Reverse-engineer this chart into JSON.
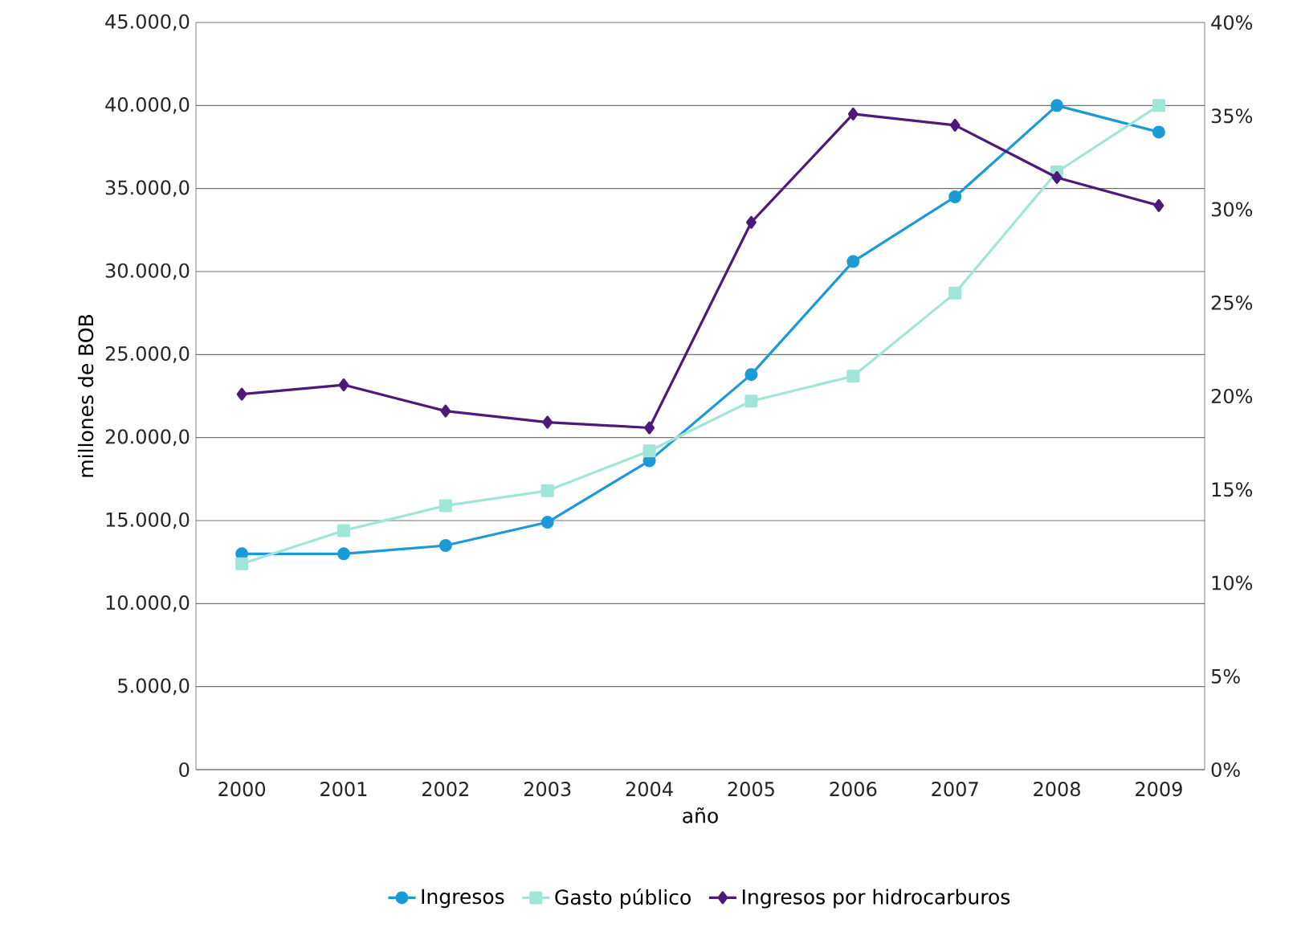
{
  "chart_data": {
    "type": "line",
    "xlabel": "año",
    "ylabel": "millones de BOB",
    "categories": [
      "2000",
      "2001",
      "2002",
      "2003",
      "2004",
      "2005",
      "2006",
      "2007",
      "2008",
      "2009"
    ],
    "series": [
      {
        "name": "Ingresos",
        "color": "#1a9ad6",
        "marker": "circle",
        "values": [
          13000,
          13000,
          13500,
          14900,
          18600,
          23800,
          30600,
          34500,
          40000,
          38400
        ]
      },
      {
        "name": "Gasto público",
        "color": "#a0e6d8",
        "marker": "square",
        "values": [
          12400,
          14400,
          15900,
          16800,
          19200,
          22200,
          23700,
          28700,
          36000,
          40000
        ]
      },
      {
        "name": "Ingresos por hidrocarburos",
        "color": "#4b1a7a",
        "marker": "diamond",
        "axis": "y2",
        "values": [
          20.1,
          20.6,
          19.2,
          18.6,
          18.3,
          29.3,
          35.1,
          34.5,
          31.7,
          30.2
        ]
      }
    ],
    "ylim": [
      0,
      45000
    ],
    "yticks": [
      0,
      {
        "value": 5000,
        "label": "5.000,0"
      },
      {
        "value": 10000,
        "label": "10.000,0"
      },
      {
        "value": 15000,
        "label": "15.000,0"
      },
      {
        "value": 20000,
        "label": "20.000,0"
      },
      {
        "value": 25000,
        "label": "25.000,0"
      },
      {
        "value": 30000,
        "label": "30.000,0"
      },
      {
        "value": 35000,
        "label": "35.000,0"
      },
      {
        "value": 40000,
        "label": "40.000,0"
      },
      {
        "value": 45000,
        "label": "45.000,0"
      }
    ],
    "y2lim": [
      0,
      40
    ],
    "y2ticks": [
      {
        "value": 0,
        "label": "0%"
      },
      {
        "value": 5,
        "label": "5%"
      },
      {
        "value": 10,
        "label": "10%"
      },
      {
        "value": 15,
        "label": "15%"
      },
      {
        "value": 20,
        "label": "20%"
      },
      {
        "value": 25,
        "label": "25%"
      },
      {
        "value": 30,
        "label": "30%"
      },
      {
        "value": 35,
        "label": "35%"
      },
      {
        "value": 40,
        "label": "40%"
      }
    ],
    "grid": "y",
    "legend": "bottom"
  }
}
